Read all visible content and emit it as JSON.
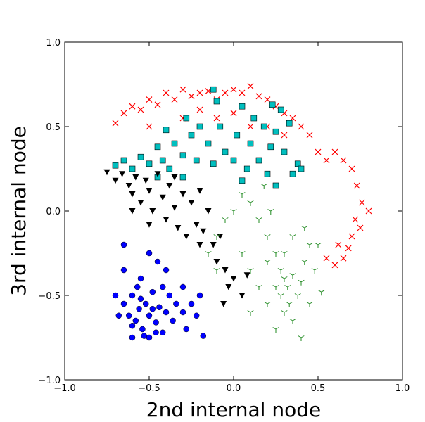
{
  "chart_data": {
    "type": "scatter",
    "xlabel": "2nd internal node",
    "ylabel": "3rd internal node",
    "xlim": [
      -1.0,
      1.0
    ],
    "ylim": [
      -1.0,
      1.0
    ],
    "xticks": [
      {
        "value": -1.0,
        "label": "−1.0"
      },
      {
        "value": -0.5,
        "label": "−0.5"
      },
      {
        "value": 0,
        "label": "0.0"
      },
      {
        "value": 0.5,
        "label": "0.5"
      },
      {
        "value": 1.0,
        "label": "1.0"
      }
    ],
    "yticks": [
      {
        "value": -1.0,
        "label": "−1.0"
      },
      {
        "value": -0.5,
        "label": "−0.5"
      },
      {
        "value": 0,
        "label": "0.0"
      },
      {
        "value": 0.5,
        "label": "0.5"
      },
      {
        "value": 1.0,
        "label": "1.0"
      }
    ],
    "grid": false,
    "series": [
      {
        "color": "#ff0000",
        "marker": "x",
        "x": [
          -0.7,
          -0.65,
          -0.6,
          -0.55,
          -0.5,
          -0.45,
          -0.4,
          -0.35,
          -0.3,
          -0.25,
          -0.2,
          -0.15,
          -0.1,
          -0.05,
          0.0,
          0.05,
          0.1,
          0.15,
          0.2,
          0.25,
          0.3,
          0.35,
          0.4,
          0.45,
          0.5,
          0.55,
          0.6,
          0.65,
          0.7,
          0.73,
          0.76,
          0.8,
          0.72,
          0.75,
          0.7,
          0.68,
          0.65,
          0.6,
          0.62,
          0.55,
          -0.5,
          -0.3,
          -0.1,
          0.1,
          0.2,
          0.0,
          -0.2,
          0.3
        ],
        "y": [
          0.52,
          0.58,
          0.62,
          0.6,
          0.66,
          0.63,
          0.7,
          0.66,
          0.72,
          0.68,
          0.7,
          0.71,
          0.66,
          0.7,
          0.72,
          0.7,
          0.74,
          0.68,
          0.66,
          0.62,
          0.58,
          0.55,
          0.5,
          0.45,
          0.35,
          0.3,
          0.35,
          0.3,
          0.25,
          0.15,
          0.05,
          0.0,
          -0.05,
          -0.1,
          -0.15,
          -0.22,
          -0.28,
          -0.32,
          -0.2,
          -0.28,
          0.5,
          0.55,
          0.55,
          0.5,
          0.5,
          0.58,
          0.6,
          0.45
        ]
      },
      {
        "color": "#00bfbf",
        "marker": "s",
        "x": [
          -0.7,
          -0.65,
          -0.6,
          -0.55,
          -0.5,
          -0.45,
          -0.42,
          -0.38,
          -0.35,
          -0.3,
          -0.28,
          -0.25,
          -0.22,
          -0.2,
          -0.15,
          -0.12,
          -0.1,
          -0.08,
          -0.05,
          0.0,
          0.02,
          0.05,
          0.08,
          0.1,
          0.12,
          0.15,
          0.18,
          0.2,
          0.22,
          0.25,
          0.28,
          0.3,
          0.33,
          0.35,
          0.38,
          0.4,
          0.25,
          0.05,
          -0.3,
          -0.45,
          -0.4,
          -0.12,
          0.23
        ],
        "y": [
          0.27,
          0.3,
          0.25,
          0.32,
          0.28,
          0.38,
          0.3,
          0.25,
          0.4,
          0.33,
          0.55,
          0.45,
          0.3,
          0.5,
          0.4,
          0.28,
          0.65,
          0.5,
          0.35,
          0.3,
          0.45,
          0.62,
          0.25,
          0.4,
          0.55,
          0.3,
          0.5,
          0.22,
          0.38,
          0.47,
          0.6,
          0.35,
          0.52,
          0.22,
          0.28,
          0.25,
          0.15,
          0.18,
          0.2,
          0.2,
          0.48,
          0.72,
          0.63
        ]
      },
      {
        "color": "#000000",
        "marker": "v",
        "x": [
          -0.75,
          -0.7,
          -0.66,
          -0.62,
          -0.6,
          -0.58,
          -0.55,
          -0.52,
          -0.5,
          -0.48,
          -0.45,
          -0.42,
          -0.4,
          -0.38,
          -0.35,
          -0.33,
          -0.3,
          -0.28,
          -0.25,
          -0.22,
          -0.2,
          -0.18,
          -0.15,
          -0.12,
          -0.1,
          -0.08,
          -0.05,
          -0.03,
          -0.06,
          0.0,
          0.05,
          -0.5,
          -0.35,
          -0.6,
          0.08,
          -0.2
        ],
        "y": [
          0.23,
          0.18,
          0.22,
          0.15,
          0.1,
          0.2,
          0.05,
          0.18,
          0.12,
          0.0,
          0.22,
          0.08,
          -0.05,
          0.15,
          0.02,
          -0.1,
          0.1,
          -0.15,
          0.05,
          -0.08,
          -0.2,
          -0.12,
          0.0,
          -0.2,
          -0.3,
          -0.15,
          -0.35,
          -0.45,
          -0.55,
          -0.4,
          -0.5,
          -0.08,
          0.2,
          0.0,
          -0.38,
          0.12
        ]
      },
      {
        "color": "#228b22",
        "marker": "1",
        "x": [
          -0.15,
          -0.1,
          -0.05,
          0.0,
          0.05,
          0.1,
          0.15,
          0.18,
          0.2,
          0.22,
          0.25,
          0.28,
          0.3,
          0.32,
          0.35,
          0.38,
          0.4,
          0.42,
          0.45,
          0.48,
          0.5,
          0.52,
          0.3,
          0.25,
          0.2,
          0.15,
          0.1,
          0.05,
          0.35,
          0.4,
          0.3,
          0.35,
          0.42,
          0.2,
          0.25,
          0.33,
          0.45,
          0.1,
          0.28,
          -0.1
        ],
        "y": [
          -0.25,
          -0.15,
          -0.05,
          0.0,
          0.1,
          0.05,
          -0.05,
          0.15,
          -0.15,
          0.0,
          -0.25,
          -0.35,
          -0.4,
          -0.45,
          -0.38,
          -0.5,
          -0.42,
          -0.3,
          -0.55,
          -0.35,
          -0.2,
          -0.48,
          -0.6,
          -0.7,
          -0.55,
          -0.45,
          -0.35,
          -0.25,
          -0.65,
          -0.75,
          -0.25,
          -0.15,
          -0.1,
          -0.3,
          -0.45,
          -0.55,
          -0.2,
          -0.6,
          -0.5,
          -0.35
        ]
      },
      {
        "color": "#0000ff",
        "marker": "o",
        "x": [
          -0.65,
          -0.62,
          -0.6,
          -0.58,
          -0.56,
          -0.54,
          -0.52,
          -0.5,
          -0.48,
          -0.46,
          -0.44,
          -0.42,
          -0.4,
          -0.38,
          -0.36,
          -0.34,
          -0.3,
          -0.28,
          -0.25,
          -0.22,
          -0.65,
          -0.65,
          -0.5,
          -0.45,
          -0.4,
          -0.55,
          -0.6,
          -0.53,
          -0.46,
          -0.18,
          -0.68,
          -0.7,
          -0.57,
          -0.5,
          -0.6,
          -0.42,
          -0.3,
          -0.2,
          -0.48,
          -0.55
        ],
        "y": [
          -0.55,
          -0.62,
          -0.5,
          -0.65,
          -0.58,
          -0.7,
          -0.55,
          -0.62,
          -0.48,
          -0.66,
          -0.57,
          -0.72,
          -0.6,
          -0.5,
          -0.65,
          -0.55,
          -0.6,
          -0.7,
          -0.55,
          -0.62,
          -0.2,
          -0.35,
          -0.25,
          -0.3,
          -0.35,
          -0.4,
          -0.75,
          -0.74,
          -0.72,
          -0.74,
          -0.62,
          -0.5,
          -0.45,
          -0.75,
          -0.68,
          -0.45,
          -0.45,
          -0.5,
          -0.58,
          -0.52
        ]
      }
    ]
  }
}
